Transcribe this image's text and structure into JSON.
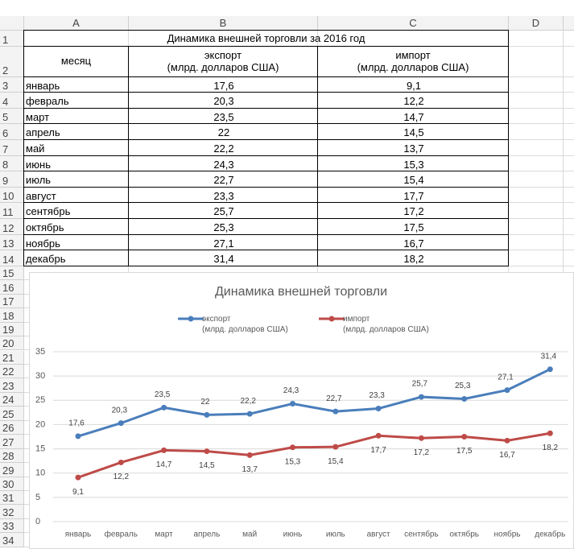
{
  "spreadsheet": {
    "columns": [
      "A",
      "B",
      "C",
      "D"
    ],
    "rows": [
      1,
      2,
      3,
      4,
      5,
      6,
      7,
      8,
      9,
      10,
      11,
      12,
      13,
      14,
      15,
      16,
      17,
      18,
      19,
      20,
      21,
      22,
      23,
      24,
      25,
      26,
      27,
      28,
      29,
      30,
      31,
      32,
      33,
      34
    ],
    "title": "Динамика внешней торговли за 2016 год",
    "header": [
      "месяц",
      "экспорт\n(млрд. долларов США)",
      "импорт\n(млрд. долларов США)"
    ],
    "cells": [
      [
        "январь",
        "17,6",
        "9,1"
      ],
      [
        "февраль",
        "20,3",
        "12,2"
      ],
      [
        "март",
        "23,5",
        "14,7"
      ],
      [
        "апрель",
        "22",
        "14,5"
      ],
      [
        "май",
        "22,2",
        "13,7"
      ],
      [
        "июнь",
        "24,3",
        "15,3"
      ],
      [
        "июль",
        "22,7",
        "15,4"
      ],
      [
        "август",
        "23,3",
        "17,7"
      ],
      [
        "сентябрь",
        "25,7",
        "17,2"
      ],
      [
        "октябрь",
        "25,3",
        "17,5"
      ],
      [
        "ноябрь",
        "27,1",
        "16,7"
      ],
      [
        "декабрь",
        "31,4",
        "18,2"
      ]
    ]
  },
  "chart_data": {
    "type": "line",
    "title": "Динамика внешней торговли",
    "categories": [
      "январь",
      "февраль",
      "март",
      "апрель",
      "май",
      "июнь",
      "июль",
      "август",
      "сентябрь",
      "октябрь",
      "ноябрь",
      "декабрь"
    ],
    "series": [
      {
        "name": "экспорт\n(млрд. долларов США)",
        "color": "#4a7ebb",
        "values": [
          17.6,
          20.3,
          23.5,
          22,
          22.2,
          24.3,
          22.7,
          23.3,
          25.7,
          25.3,
          27.1,
          31.4
        ],
        "value_labels": [
          "17,6",
          "20,3",
          "23,5",
          "22",
          "22,2",
          "24,3",
          "22,7",
          "23,3",
          "25,7",
          "25,3",
          "27,1",
          "31,4"
        ]
      },
      {
        "name": "импорт\n(млрд. долларов США)",
        "color": "#be4b48",
        "values": [
          9.1,
          12.2,
          14.7,
          14.5,
          13.7,
          15.3,
          15.4,
          17.7,
          17.2,
          17.5,
          16.7,
          18.2
        ],
        "value_labels": [
          "9,1",
          "12,2",
          "14,7",
          "14,5",
          "13,7",
          "15,3",
          "15,4",
          "17,7",
          "17,2",
          "17,5",
          "16,7",
          "18,2"
        ]
      }
    ],
    "ylim": [
      0,
      35
    ],
    "yticks": [
      0,
      5,
      10,
      15,
      20,
      25,
      30,
      35
    ],
    "grid": true,
    "legend": "top"
  }
}
